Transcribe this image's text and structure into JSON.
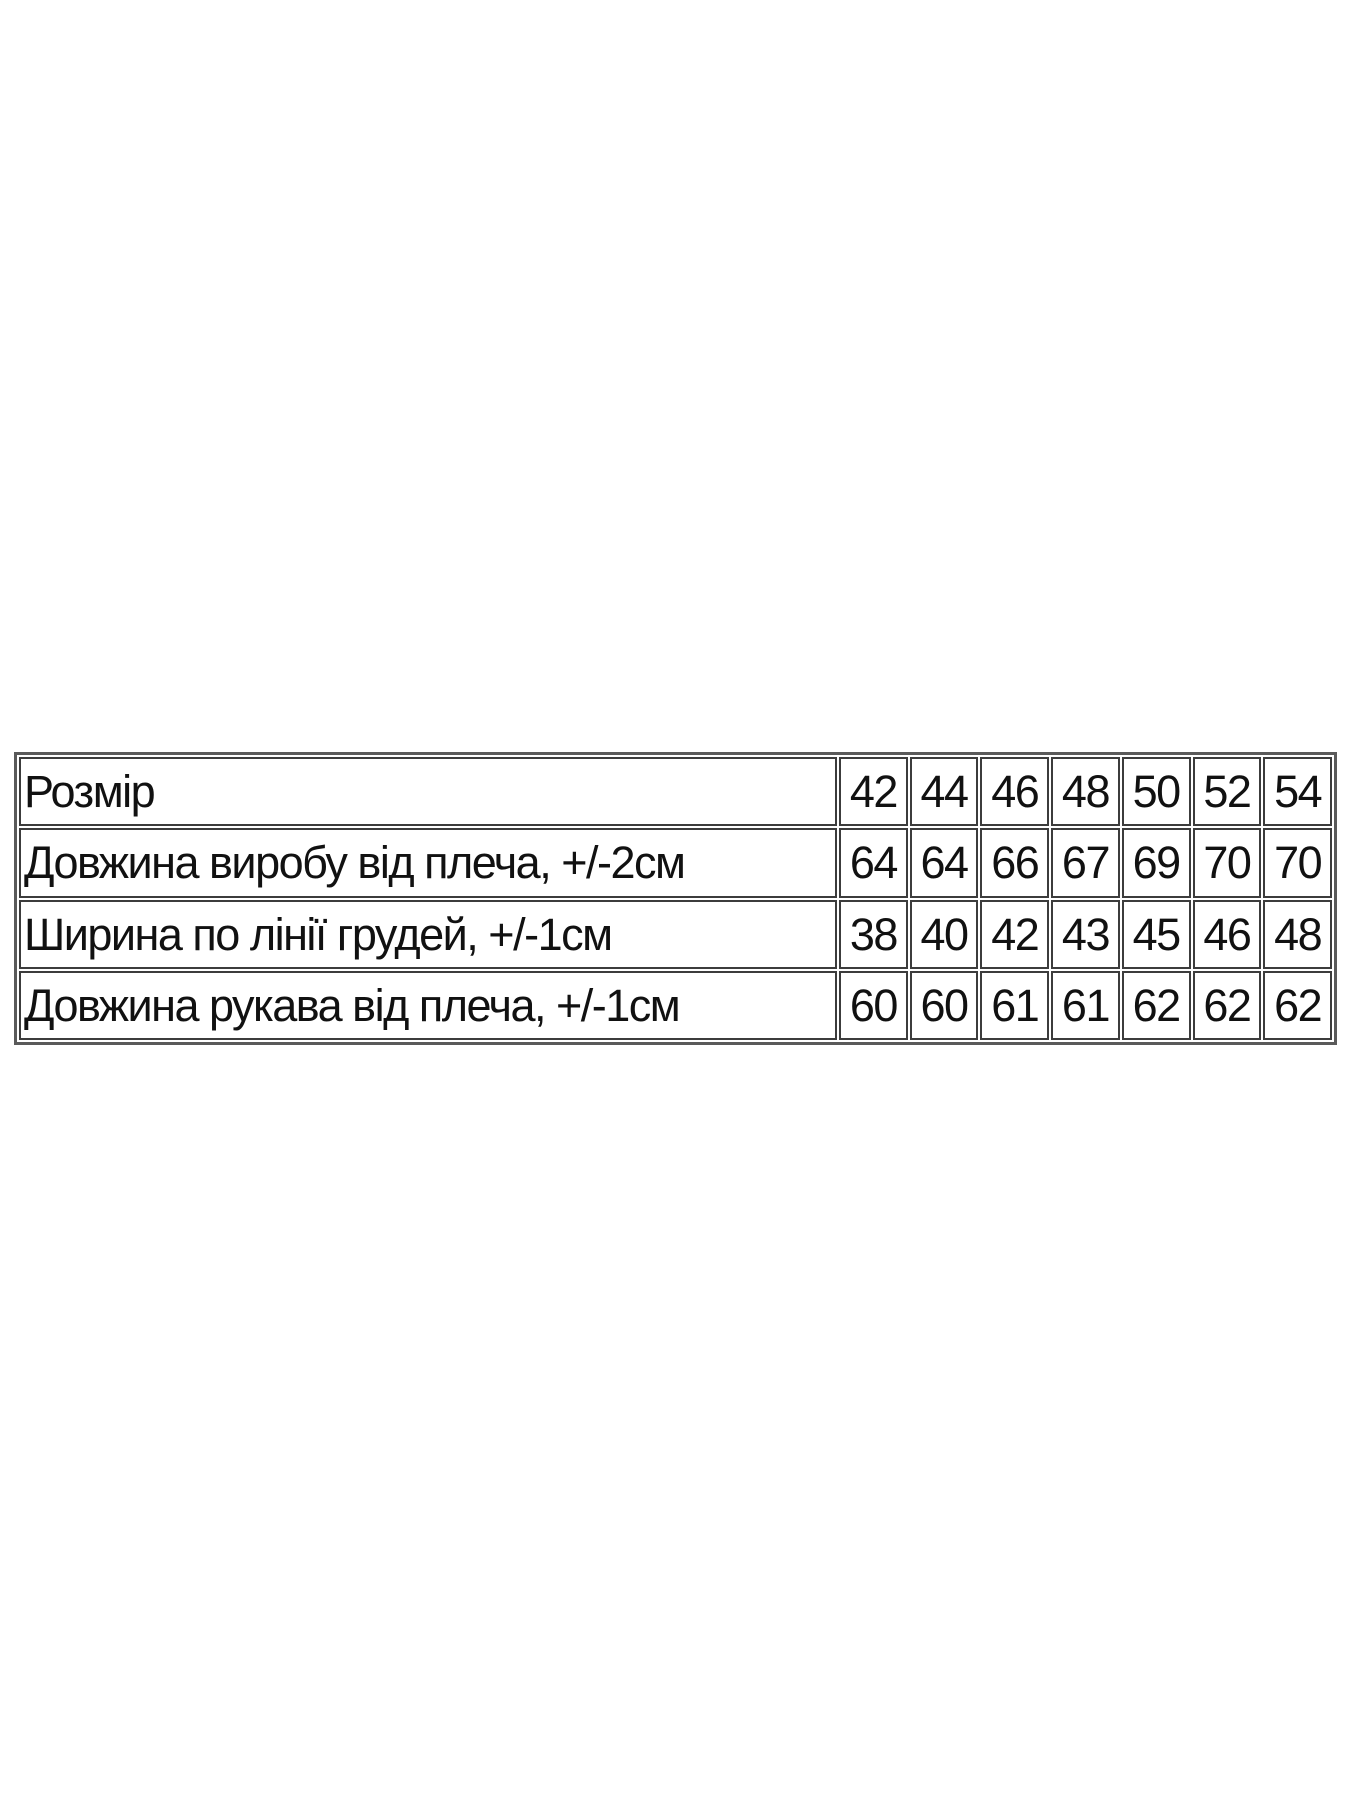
{
  "size_table": {
    "rows": [
      {
        "label": "Розмір",
        "values": [
          "42",
          "44",
          "46",
          "48",
          "50",
          "52",
          "54"
        ]
      },
      {
        "label": "Довжина виробу від плеча, +/-2см",
        "values": [
          "64",
          "64",
          "66",
          "67",
          "69",
          "70",
          "70"
        ]
      },
      {
        "label": "Ширина по лінії грудей, +/-1см",
        "values": [
          "38",
          "40",
          "42",
          "43",
          "45",
          "46",
          "48"
        ]
      },
      {
        "label": "Довжина рукава від плеча, +/-1см",
        "values": [
          "60",
          "60",
          "61",
          "61",
          "62",
          "62",
          "62"
        ]
      }
    ]
  }
}
